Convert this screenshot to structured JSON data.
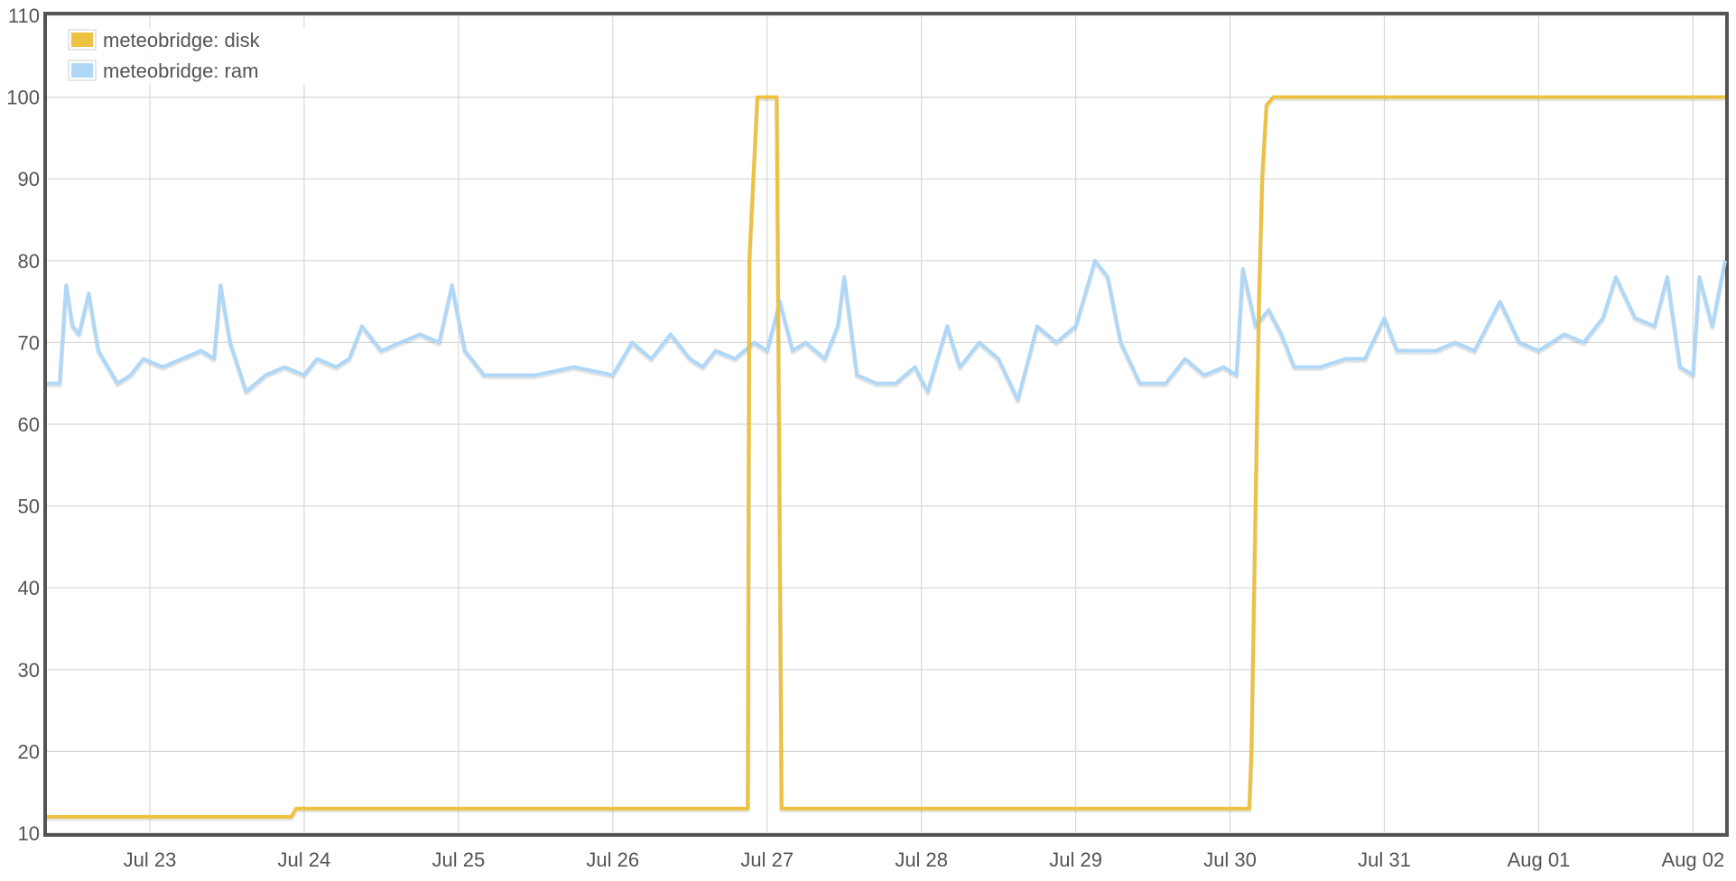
{
  "chart_data": {
    "type": "line",
    "title": "",
    "xlabel": "",
    "ylabel": "",
    "x_axis": {
      "type": "date",
      "range": [
        "2022-07-22 08:00",
        "2022-08-02 05:00"
      ],
      "tick_dates": [
        "2022-07-23",
        "2022-07-24",
        "2022-07-25",
        "2022-07-26",
        "2022-07-27",
        "2022-07-28",
        "2022-07-29",
        "2022-07-30",
        "2022-07-31",
        "2022-08-01",
        "2022-08-02"
      ],
      "tick_labels": [
        "Jul 23",
        "Jul 24",
        "Jul 25",
        "Jul 26",
        "Jul 27",
        "Jul 28",
        "Jul 29",
        "Jul 30",
        "Jul 31",
        "Aug 01",
        "Aug 02"
      ]
    },
    "y_axis": {
      "range": [
        10,
        110
      ],
      "ticks": [
        10,
        20,
        30,
        40,
        50,
        60,
        70,
        80,
        90,
        100,
        110
      ],
      "tick_labels": [
        "10",
        "20",
        "30",
        "40",
        "50",
        "60",
        "70",
        "80",
        "90",
        "100",
        "110"
      ]
    },
    "grid": true,
    "legend": {
      "position": "top-left"
    },
    "series": [
      {
        "name": "meteobridge: disk",
        "color": "#edc240",
        "points": [
          [
            "2022-07-22 08:00",
            12
          ],
          [
            "2022-07-23 22:00",
            12
          ],
          [
            "2022-07-23 22:45",
            13
          ],
          [
            "2022-07-26 21:00",
            13
          ],
          [
            "2022-07-26 21:15",
            80
          ],
          [
            "2022-07-26 22:30",
            100
          ],
          [
            "2022-07-27 01:30",
            100
          ],
          [
            "2022-07-27 02:15",
            13
          ],
          [
            "2022-07-30 03:00",
            13
          ],
          [
            "2022-07-30 03:20",
            20
          ],
          [
            "2022-07-30 04:30",
            75
          ],
          [
            "2022-07-30 05:00",
            90
          ],
          [
            "2022-07-30 05:40",
            99
          ],
          [
            "2022-07-30 06:45",
            100
          ],
          [
            "2022-08-02 05:00",
            100
          ]
        ]
      },
      {
        "name": "meteobridge: ram",
        "color": "#afd8f8",
        "points": [
          [
            "2022-07-22 08:00",
            65
          ],
          [
            "2022-07-22 10:00",
            65
          ],
          [
            "2022-07-22 11:00",
            77
          ],
          [
            "2022-07-22 12:00",
            72
          ],
          [
            "2022-07-22 13:00",
            71
          ],
          [
            "2022-07-22 14:30",
            76
          ],
          [
            "2022-07-22 16:00",
            69
          ],
          [
            "2022-07-22 19:00",
            65
          ],
          [
            "2022-07-22 21:00",
            66
          ],
          [
            "2022-07-22 23:00",
            68
          ],
          [
            "2022-07-23 02:00",
            67
          ],
          [
            "2022-07-23 05:00",
            68
          ],
          [
            "2022-07-23 08:00",
            69
          ],
          [
            "2022-07-23 10:00",
            68
          ],
          [
            "2022-07-23 11:00",
            77
          ],
          [
            "2022-07-23 12:30",
            70
          ],
          [
            "2022-07-23 15:00",
            64
          ],
          [
            "2022-07-23 18:00",
            66
          ],
          [
            "2022-07-23 21:00",
            67
          ],
          [
            "2022-07-24 00:00",
            66
          ],
          [
            "2022-07-24 02:00",
            68
          ],
          [
            "2022-07-24 05:00",
            67
          ],
          [
            "2022-07-24 07:00",
            68
          ],
          [
            "2022-07-24 09:00",
            72
          ],
          [
            "2022-07-24 12:00",
            69
          ],
          [
            "2022-07-24 15:00",
            70
          ],
          [
            "2022-07-24 18:00",
            71
          ],
          [
            "2022-07-24 21:00",
            70
          ],
          [
            "2022-07-24 23:00",
            77
          ],
          [
            "2022-07-25 01:00",
            69
          ],
          [
            "2022-07-25 04:00",
            66
          ],
          [
            "2022-07-25 07:00",
            66
          ],
          [
            "2022-07-25 12:00",
            66
          ],
          [
            "2022-07-25 18:00",
            67
          ],
          [
            "2022-07-26 00:00",
            66
          ],
          [
            "2022-07-26 03:00",
            70
          ],
          [
            "2022-07-26 06:00",
            68
          ],
          [
            "2022-07-26 09:00",
            71
          ],
          [
            "2022-07-26 12:00",
            68
          ],
          [
            "2022-07-26 14:00",
            67
          ],
          [
            "2022-07-26 16:00",
            69
          ],
          [
            "2022-07-26 19:00",
            68
          ],
          [
            "2022-07-26 22:00",
            70
          ],
          [
            "2022-07-27 00:00",
            69
          ],
          [
            "2022-07-27 02:00",
            75
          ],
          [
            "2022-07-27 04:00",
            69
          ],
          [
            "2022-07-27 06:00",
            70
          ],
          [
            "2022-07-27 09:00",
            68
          ],
          [
            "2022-07-27 11:00",
            72
          ],
          [
            "2022-07-27 12:00",
            78
          ],
          [
            "2022-07-27 14:00",
            66
          ],
          [
            "2022-07-27 17:00",
            65
          ],
          [
            "2022-07-27 20:00",
            65
          ],
          [
            "2022-07-27 23:00",
            67
          ],
          [
            "2022-07-28 01:00",
            64
          ],
          [
            "2022-07-28 04:00",
            72
          ],
          [
            "2022-07-28 06:00",
            67
          ],
          [
            "2022-07-28 09:00",
            70
          ],
          [
            "2022-07-28 12:00",
            68
          ],
          [
            "2022-07-28 15:00",
            63
          ],
          [
            "2022-07-28 18:00",
            72
          ],
          [
            "2022-07-28 21:00",
            70
          ],
          [
            "2022-07-29 00:00",
            72
          ],
          [
            "2022-07-29 03:00",
            80
          ],
          [
            "2022-07-29 05:00",
            78
          ],
          [
            "2022-07-29 07:00",
            70
          ],
          [
            "2022-07-29 10:00",
            65
          ],
          [
            "2022-07-29 14:00",
            65
          ],
          [
            "2022-07-29 17:00",
            68
          ],
          [
            "2022-07-29 20:00",
            66
          ],
          [
            "2022-07-29 23:00",
            67
          ],
          [
            "2022-07-30 01:00",
            66
          ],
          [
            "2022-07-30 02:00",
            79
          ],
          [
            "2022-07-30 04:00",
            72
          ],
          [
            "2022-07-30 06:00",
            74
          ],
          [
            "2022-07-30 08:00",
            71
          ],
          [
            "2022-07-30 10:00",
            67
          ],
          [
            "2022-07-30 14:00",
            67
          ],
          [
            "2022-07-30 18:00",
            68
          ],
          [
            "2022-07-30 21:00",
            68
          ],
          [
            "2022-07-31 00:00",
            73
          ],
          [
            "2022-07-31 02:00",
            69
          ],
          [
            "2022-07-31 05:00",
            69
          ],
          [
            "2022-07-31 08:00",
            69
          ],
          [
            "2022-07-31 11:00",
            70
          ],
          [
            "2022-07-31 14:00",
            69
          ],
          [
            "2022-07-31 18:00",
            75
          ],
          [
            "2022-07-31 21:00",
            70
          ],
          [
            "2022-08-01 00:00",
            69
          ],
          [
            "2022-08-01 04:00",
            71
          ],
          [
            "2022-08-01 07:00",
            70
          ],
          [
            "2022-08-01 10:00",
            73
          ],
          [
            "2022-08-01 12:00",
            78
          ],
          [
            "2022-08-01 15:00",
            73
          ],
          [
            "2022-08-01 18:00",
            72
          ],
          [
            "2022-08-01 20:00",
            78
          ],
          [
            "2022-08-01 22:00",
            67
          ],
          [
            "2022-08-02 00:00",
            66
          ],
          [
            "2022-08-02 01:00",
            78
          ],
          [
            "2022-08-02 03:00",
            72
          ],
          [
            "2022-08-02 05:00",
            80
          ]
        ]
      }
    ]
  }
}
